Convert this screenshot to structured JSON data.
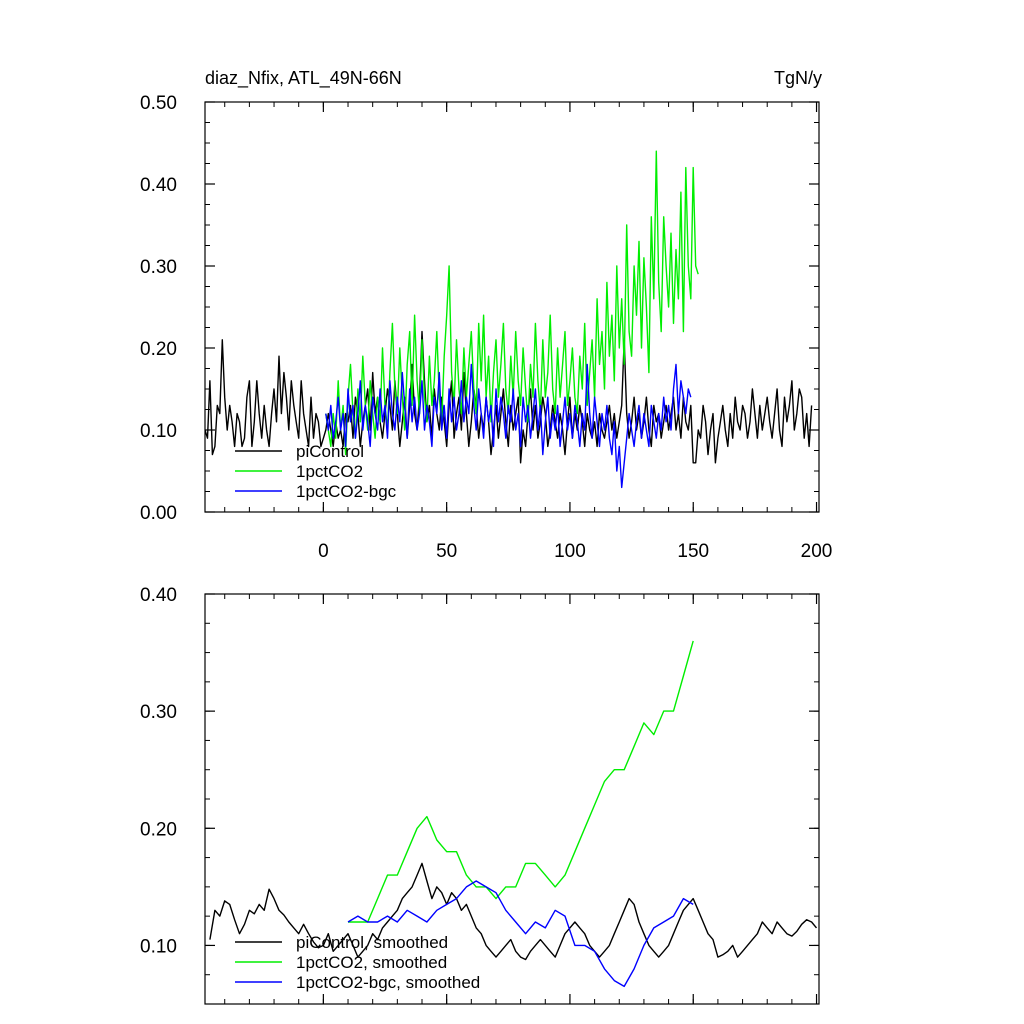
{
  "colors": {
    "piControl": "#000000",
    "1pctCO2": "#00ee00",
    "1pctCO2-bgc": "#0000ff",
    "axis": "#000000",
    "background": "#ffffff"
  },
  "chart_data": [
    {
      "type": "line",
      "title": "diaz_Nfix, ATL_49N-66N",
      "units": "TgN/y",
      "xlim": [
        -48,
        201
      ],
      "ylim": [
        0.0,
        0.5
      ],
      "x_ticks": [
        0,
        50,
        100,
        150,
        200
      ],
      "x_tick_labels": [
        "0",
        "50",
        "100",
        "150",
        "200"
      ],
      "y_ticks": [
        0.0,
        0.1,
        0.2,
        0.3,
        0.4,
        0.5
      ],
      "y_tick_labels": [
        "0.00",
        "0.10",
        "0.20",
        "0.30",
        "0.40",
        "0.50"
      ],
      "legend": {
        "position": "bottom-left",
        "entries": [
          "piControl",
          "1pctCO2",
          "1pctCO2-bgc"
        ]
      },
      "series": [
        {
          "name": "piControl",
          "x_start": -48,
          "values": [
            0.1,
            0.09,
            0.16,
            0.07,
            0.08,
            0.13,
            0.12,
            0.21,
            0.14,
            0.1,
            0.13,
            0.11,
            0.08,
            0.12,
            0.11,
            0.08,
            0.09,
            0.14,
            0.16,
            0.08,
            0.11,
            0.16,
            0.12,
            0.09,
            0.13,
            0.1,
            0.08,
            0.12,
            0.15,
            0.11,
            0.19,
            0.12,
            0.17,
            0.14,
            0.1,
            0.16,
            0.13,
            0.11,
            0.09,
            0.16,
            0.12,
            0.1,
            0.08,
            0.14,
            0.09,
            0.12,
            0.11,
            0.08,
            0.09,
            0.1,
            0.12,
            0.1,
            0.08,
            0.11,
            0.09,
            0.1,
            0.08,
            0.12,
            0.11,
            0.13,
            0.09,
            0.14,
            0.12,
            0.08,
            0.11,
            0.13,
            0.15,
            0.1,
            0.17,
            0.12,
            0.14,
            0.11,
            0.09,
            0.12,
            0.15,
            0.13,
            0.1,
            0.16,
            0.12,
            0.08,
            0.11,
            0.14,
            0.09,
            0.13,
            0.18,
            0.12,
            0.1,
            0.14,
            0.22,
            0.16,
            0.11,
            0.13,
            0.09,
            0.15,
            0.12,
            0.1,
            0.14,
            0.11,
            0.08,
            0.13,
            0.16,
            0.09,
            0.12,
            0.14,
            0.1,
            0.17,
            0.12,
            0.08,
            0.11,
            0.15,
            0.13,
            0.09,
            0.12,
            0.1,
            0.14,
            0.11,
            0.07,
            0.1,
            0.13,
            0.09,
            0.12,
            0.15,
            0.11,
            0.08,
            0.13,
            0.1,
            0.12,
            0.14,
            0.06,
            0.1,
            0.08,
            0.12,
            0.15,
            0.1,
            0.13,
            0.09,
            0.11,
            0.14,
            0.12,
            0.08,
            0.1,
            0.13,
            0.11,
            0.09,
            0.12,
            0.1,
            0.07,
            0.11,
            0.14,
            0.09,
            0.12,
            0.1,
            0.13,
            0.11,
            0.08,
            0.12,
            0.1,
            0.09,
            0.11,
            0.08,
            0.12,
            0.1,
            0.09,
            0.11,
            0.13,
            0.1,
            0.12,
            0.09,
            0.11,
            0.13,
            0.21,
            0.12,
            0.09,
            0.11,
            0.14,
            0.1,
            0.12,
            0.09,
            0.11,
            0.14,
            0.1,
            0.08,
            0.13,
            0.11,
            0.12,
            0.09,
            0.11,
            0.13,
            0.1,
            0.12,
            0.14,
            0.1,
            0.12,
            0.09,
            0.14,
            0.11,
            0.1,
            0.13,
            0.06,
            0.06,
            0.1,
            0.09,
            0.13,
            0.11,
            0.07,
            0.1,
            0.12,
            0.06,
            0.09,
            0.11,
            0.13,
            0.1,
            0.08,
            0.12,
            0.09,
            0.14,
            0.11,
            0.1,
            0.13,
            0.12,
            0.09,
            0.11,
            0.15,
            0.12,
            0.09,
            0.13,
            0.1,
            0.12,
            0.14,
            0.11,
            0.09,
            0.12,
            0.15,
            0.1,
            0.08,
            0.14,
            0.11,
            0.13,
            0.16,
            0.1,
            0.12,
            0.15,
            0.14,
            0.09,
            0.12,
            0.08,
            0.13
          ]
        },
        {
          "name": "1pctCO2",
          "x_start": 1,
          "values": [
            0.12,
            0.1,
            0.08,
            0.12,
            0.09,
            0.16,
            0.1,
            0.13,
            0.07,
            0.14,
            0.18,
            0.12,
            0.09,
            0.15,
            0.11,
            0.19,
            0.13,
            0.1,
            0.16,
            0.12,
            0.09,
            0.14,
            0.11,
            0.2,
            0.13,
            0.1,
            0.17,
            0.23,
            0.15,
            0.12,
            0.2,
            0.14,
            0.1,
            0.18,
            0.22,
            0.13,
            0.24,
            0.16,
            0.12,
            0.21,
            0.14,
            0.11,
            0.19,
            0.13,
            0.16,
            0.22,
            0.14,
            0.11,
            0.19,
            0.24,
            0.3,
            0.17,
            0.13,
            0.21,
            0.15,
            0.12,
            0.2,
            0.14,
            0.18,
            0.22,
            0.15,
            0.12,
            0.23,
            0.16,
            0.24,
            0.14,
            0.19,
            0.11,
            0.17,
            0.21,
            0.14,
            0.18,
            0.23,
            0.15,
            0.12,
            0.19,
            0.14,
            0.22,
            0.16,
            0.13,
            0.2,
            0.15,
            0.11,
            0.18,
            0.14,
            0.23,
            0.16,
            0.12,
            0.21,
            0.14,
            0.17,
            0.24,
            0.15,
            0.12,
            0.2,
            0.14,
            0.18,
            0.22,
            0.13,
            0.16,
            0.2,
            0.14,
            0.12,
            0.19,
            0.15,
            0.23,
            0.13,
            0.17,
            0.21,
            0.14,
            0.26,
            0.18,
            0.22,
            0.15,
            0.28,
            0.19,
            0.24,
            0.16,
            0.3,
            0.2,
            0.26,
            0.18,
            0.35,
            0.22,
            0.19,
            0.3,
            0.24,
            0.33,
            0.2,
            0.31,
            0.25,
            0.17,
            0.36,
            0.26,
            0.44,
            0.28,
            0.22,
            0.36,
            0.3,
            0.25,
            0.34,
            0.23,
            0.32,
            0.26,
            0.39,
            0.22,
            0.42,
            0.3,
            0.26,
            0.42,
            0.3,
            0.29
          ]
        },
        {
          "name": "1pctCO2-bgc",
          "x_start": 1,
          "values": [
            0.12,
            0.1,
            0.13,
            0.09,
            0.11,
            0.14,
            0.1,
            0.12,
            0.08,
            0.15,
            0.11,
            0.13,
            0.09,
            0.12,
            0.16,
            0.1,
            0.13,
            0.11,
            0.08,
            0.14,
            0.12,
            0.1,
            0.15,
            0.11,
            0.13,
            0.09,
            0.16,
            0.12,
            0.1,
            0.14,
            0.11,
            0.17,
            0.13,
            0.09,
            0.15,
            0.11,
            0.14,
            0.1,
            0.12,
            0.16,
            0.1,
            0.13,
            0.11,
            0.08,
            0.14,
            0.12,
            0.17,
            0.1,
            0.13,
            0.09,
            0.15,
            0.11,
            0.14,
            0.1,
            0.12,
            0.16,
            0.11,
            0.14,
            0.12,
            0.18,
            0.13,
            0.1,
            0.15,
            0.12,
            0.09,
            0.14,
            0.11,
            0.13,
            0.08,
            0.15,
            0.11,
            0.14,
            0.12,
            0.09,
            0.13,
            0.11,
            0.15,
            0.1,
            0.12,
            0.08,
            0.14,
            0.11,
            0.13,
            0.09,
            0.12,
            0.15,
            0.1,
            0.13,
            0.07,
            0.11,
            0.14,
            0.09,
            0.12,
            0.1,
            0.13,
            0.08,
            0.11,
            0.14,
            0.1,
            0.12,
            0.09,
            0.13,
            0.11,
            0.08,
            0.12,
            0.1,
            0.18,
            0.12,
            0.09,
            0.14,
            0.11,
            0.08,
            0.12,
            0.1,
            0.13,
            0.09,
            0.07,
            0.11,
            0.05,
            0.08,
            0.03,
            0.06,
            0.09,
            0.12,
            0.1,
            0.08,
            0.11,
            0.13,
            0.09,
            0.12,
            0.1,
            0.08,
            0.13,
            0.11,
            0.09,
            0.12,
            0.1,
            0.14,
            0.11,
            0.13,
            0.1,
            0.15,
            0.18,
            0.12,
            0.16,
            0.14,
            0.12,
            0.15,
            0.14
          ]
        }
      ]
    },
    {
      "type": "line",
      "xlim": [
        -48,
        201
      ],
      "ylim": [
        0.05,
        0.4
      ],
      "x_ticks": [
        0,
        50,
        100,
        150,
        200
      ],
      "y_ticks": [
        0.1,
        0.2,
        0.3,
        0.4
      ],
      "y_tick_labels": [
        "0.10",
        "0.20",
        "0.30",
        "0.40"
      ],
      "legend": {
        "position": "bottom-left",
        "entries": [
          "piControl, smoothed",
          "1pctCO2, smoothed",
          "1pctCO2-bgc, smoothed"
        ]
      },
      "series": [
        {
          "name": "piControl, smoothed",
          "x": [
            -46,
            -44,
            -42,
            -40,
            -38,
            -36,
            -34,
            -32,
            -30,
            -28,
            -26,
            -24,
            -22,
            -20,
            -18,
            -16,
            -14,
            -12,
            -10,
            -8,
            -6,
            -4,
            -2,
            0,
            2,
            4,
            6,
            8,
            10,
            12,
            14,
            16,
            18,
            20,
            22,
            24,
            26,
            28,
            30,
            32,
            34,
            36,
            38,
            40,
            42,
            44,
            46,
            48,
            50,
            52,
            54,
            56,
            58,
            60,
            62,
            64,
            66,
            68,
            70,
            72,
            74,
            76,
            78,
            80,
            82,
            84,
            86,
            88,
            90,
            92,
            94,
            96,
            98,
            100,
            102,
            104,
            106,
            108,
            110,
            112,
            114,
            116,
            118,
            120,
            122,
            124,
            126,
            128,
            130,
            132,
            134,
            136,
            138,
            140,
            142,
            144,
            146,
            148,
            150,
            152,
            154,
            156,
            158,
            160,
            162,
            164,
            166,
            168,
            170,
            172,
            174,
            176,
            178,
            180,
            182,
            184,
            186,
            188,
            190,
            192,
            194,
            196,
            198,
            200
          ],
          "values": [
            0.105,
            0.13,
            0.125,
            0.138,
            0.135,
            0.122,
            0.11,
            0.118,
            0.13,
            0.127,
            0.135,
            0.13,
            0.148,
            0.14,
            0.13,
            0.126,
            0.12,
            0.115,
            0.11,
            0.118,
            0.11,
            0.103,
            0.098,
            0.1,
            0.11,
            0.095,
            0.1,
            0.105,
            0.11,
            0.1,
            0.09,
            0.095,
            0.1,
            0.11,
            0.105,
            0.115,
            0.12,
            0.125,
            0.13,
            0.14,
            0.145,
            0.15,
            0.16,
            0.17,
            0.155,
            0.14,
            0.15,
            0.145,
            0.135,
            0.145,
            0.14,
            0.13,
            0.135,
            0.125,
            0.115,
            0.11,
            0.1,
            0.095,
            0.09,
            0.095,
            0.1,
            0.105,
            0.095,
            0.09,
            0.088,
            0.095,
            0.1,
            0.105,
            0.1,
            0.095,
            0.09,
            0.1,
            0.11,
            0.115,
            0.12,
            0.115,
            0.11,
            0.1,
            0.095,
            0.09,
            0.095,
            0.1,
            0.11,
            0.12,
            0.13,
            0.14,
            0.135,
            0.12,
            0.11,
            0.1,
            0.095,
            0.09,
            0.095,
            0.1,
            0.11,
            0.12,
            0.13,
            0.135,
            0.14,
            0.13,
            0.12,
            0.11,
            0.105,
            0.09,
            0.092,
            0.095,
            0.1,
            0.09,
            0.095,
            0.1,
            0.105,
            0.11,
            0.12,
            0.115,
            0.11,
            0.12,
            0.115,
            0.11,
            0.108,
            0.112,
            0.118,
            0.122,
            0.12,
            0.115
          ]
        },
        {
          "name": "1pctCO2, smoothed",
          "x": [
            10,
            14,
            18,
            22,
            26,
            30,
            34,
            38,
            42,
            44,
            46,
            50,
            54,
            58,
            62,
            66,
            70,
            74,
            78,
            82,
            86,
            90,
            94,
            98,
            102,
            106,
            110,
            114,
            118,
            122,
            126,
            130,
            134,
            138,
            142,
            146,
            150
          ],
          "values": [
            0.12,
            0.12,
            0.12,
            0.14,
            0.16,
            0.16,
            0.18,
            0.2,
            0.21,
            0.2,
            0.19,
            0.18,
            0.18,
            0.16,
            0.15,
            0.15,
            0.14,
            0.15,
            0.15,
            0.17,
            0.17,
            0.16,
            0.15,
            0.16,
            0.18,
            0.2,
            0.22,
            0.24,
            0.25,
            0.25,
            0.27,
            0.29,
            0.28,
            0.3,
            0.3,
            0.33,
            0.36
          ]
        },
        {
          "name": "1pctCO2-bgc, smoothed",
          "x": [
            10,
            14,
            18,
            22,
            26,
            30,
            34,
            38,
            42,
            46,
            50,
            54,
            58,
            62,
            66,
            70,
            74,
            78,
            82,
            86,
            90,
            94,
            98,
            102,
            106,
            110,
            114,
            118,
            122,
            126,
            130,
            134,
            138,
            142,
            146,
            150
          ],
          "values": [
            0.12,
            0.125,
            0.12,
            0.12,
            0.125,
            0.12,
            0.13,
            0.125,
            0.12,
            0.13,
            0.135,
            0.14,
            0.15,
            0.155,
            0.15,
            0.145,
            0.13,
            0.12,
            0.11,
            0.12,
            0.115,
            0.13,
            0.125,
            0.1,
            0.1,
            0.095,
            0.08,
            0.07,
            0.065,
            0.08,
            0.1,
            0.115,
            0.12,
            0.125,
            0.14,
            0.135
          ]
        }
      ]
    }
  ]
}
